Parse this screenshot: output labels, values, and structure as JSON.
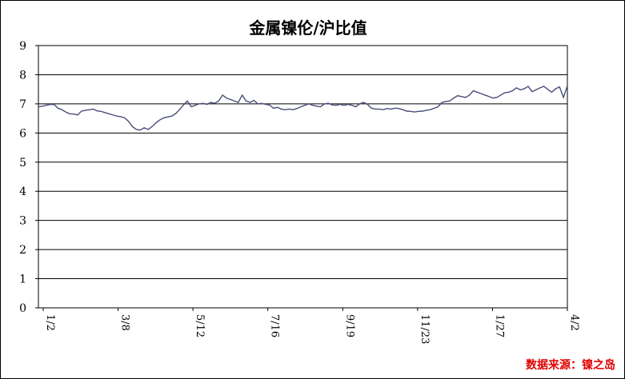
{
  "chart_data": {
    "type": "line",
    "title": "金属镍伦/沪比值",
    "source_note": "数据来源：镍之岛",
    "xlabel": "",
    "ylabel": "",
    "ylim": [
      0,
      9
    ],
    "yticks": [
      "0",
      "1",
      "2",
      "3",
      "4",
      "5",
      "6",
      "7",
      "8",
      "9"
    ],
    "x_tick_labels": [
      "1/2",
      "3/8",
      "5/12",
      "7/16",
      "9/19",
      "11/23",
      "1/27",
      "4/2"
    ],
    "grid": "horizontal",
    "legend": "none",
    "line_color": "#4a4e7a",
    "series": [
      {
        "values": [
          6.9,
          6.92,
          6.95,
          6.98,
          6.98,
          6.85,
          6.8,
          6.72,
          6.66,
          6.65,
          6.62,
          6.75,
          6.78,
          6.8,
          6.82,
          6.76,
          6.74,
          6.7,
          6.66,
          6.62,
          6.58,
          6.56,
          6.52,
          6.4,
          6.22,
          6.12,
          6.1,
          6.18,
          6.12,
          6.22,
          6.35,
          6.45,
          6.52,
          6.55,
          6.58,
          6.66,
          6.8,
          6.96,
          7.1,
          6.9,
          6.95,
          7.0,
          7.02,
          6.98,
          7.05,
          7.02,
          7.1,
          7.3,
          7.2,
          7.15,
          7.1,
          7.05,
          7.3,
          7.1,
          7.05,
          7.12,
          7.0,
          7.02,
          6.98,
          6.96,
          6.85,
          6.88,
          6.82,
          6.8,
          6.82,
          6.8,
          6.84,
          6.9,
          6.95,
          7.0,
          6.95,
          6.92,
          6.9,
          7.0,
          7.02,
          6.96,
          6.95,
          6.98,
          6.95,
          6.98,
          6.95,
          6.9,
          7.0,
          7.05,
          6.98,
          6.85,
          6.82,
          6.82,
          6.8,
          6.84,
          6.82,
          6.85,
          6.84,
          6.8,
          6.75,
          6.74,
          6.72,
          6.74,
          6.75,
          6.78,
          6.8,
          6.85,
          6.9,
          7.05,
          7.08,
          7.1,
          7.2,
          7.28,
          7.25,
          7.22,
          7.3,
          7.45,
          7.4,
          7.35,
          7.3,
          7.25,
          7.2,
          7.22,
          7.3,
          7.38,
          7.4,
          7.45,
          7.55,
          7.48,
          7.52,
          7.6,
          7.42,
          7.48,
          7.55,
          7.6,
          7.5,
          7.4,
          7.52,
          7.58,
          7.22,
          7.62
        ]
      }
    ]
  }
}
